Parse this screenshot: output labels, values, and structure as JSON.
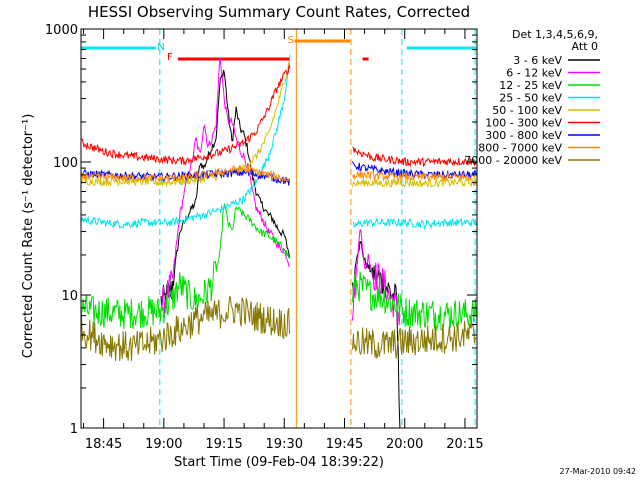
{
  "chart_data": {
    "type": "line",
    "title": "HESSI Observing Summary Count Rates, Corrected",
    "xlabel": "Start Time (09-Feb-04 18:39:22)",
    "ylabel": "Corrected Count Rate (s⁻¹ detector⁻¹)",
    "yscale": "log",
    "ylim": [
      1,
      1000
    ],
    "xlim": [
      "18:39:22",
      "20:18:00"
    ],
    "x_units": "minutes since 18:00 (axis tick values)",
    "x_range_minutes": [
      39.37,
      138.0
    ],
    "yticks": [
      {
        "value": 1,
        "label": "1"
      },
      {
        "value": 10,
        "label": "10"
      },
      {
        "value": 100,
        "label": "100"
      },
      {
        "value": 1000,
        "label": "1000"
      }
    ],
    "xticks": [
      {
        "t": 45,
        "label": "18:45"
      },
      {
        "t": 60,
        "label": "19:00"
      },
      {
        "t": 75,
        "label": "19:15"
      },
      {
        "t": 90,
        "label": "19:30"
      },
      {
        "t": 105,
        "label": "19:45"
      },
      {
        "t": 120,
        "label": "20:00"
      },
      {
        "t": 135,
        "label": "20:15"
      }
    ],
    "legend": {
      "position": "right",
      "header": [
        "Det 1,3,4,5,6,9,",
        "Att 0"
      ],
      "entries": [
        {
          "label": "3 - 6 keV",
          "color": "#000000"
        },
        {
          "label": "6 - 12 keV",
          "color": "#ff00ff"
        },
        {
          "label": "12 - 25 keV",
          "color": "#00dd00"
        },
        {
          "label": "25 - 50 keV",
          "color": "#00e5ee"
        },
        {
          "label": "50 - 100 keV",
          "color": "#d4c000"
        },
        {
          "label": "100 - 300 keV",
          "color": "#ff0000"
        },
        {
          "label": "300 - 800 keV",
          "color": "#0000ff"
        },
        {
          "label": "800 - 7000 keV",
          "color": "#ff8800"
        },
        {
          "label": "7000 - 20000 keV",
          "color": "#887700"
        }
      ]
    },
    "annotations": [
      {
        "text": "N",
        "t": 59.3,
        "color": "#00cccc"
      },
      {
        "text": "F",
        "t": 61.5,
        "color": "#ff0000"
      },
      {
        "text": "S",
        "t": 91.6,
        "color": "#ff8800"
      }
    ],
    "intervals": {
      "night_bars": [
        {
          "start": 39.5,
          "end": 58.0
        },
        {
          "start": 120.5,
          "end": 137.8
        }
      ],
      "night_boundaries": [
        59.0,
        119.3,
        137.5
      ],
      "flare_bar": {
        "start": 63.5,
        "end": 91.4
      },
      "flare_bar_short": {
        "start": 109.5,
        "end": 111.0
      },
      "saa_bar": {
        "start": 92.5,
        "end": 106.4
      },
      "saa_boundaries": [
        93.0,
        106.6
      ]
    },
    "series": [
      {
        "name": "3 - 6 keV",
        "color": "#000000",
        "segments": [
          {
            "x": [
              59.3,
              60,
              62,
              64,
              66,
              67,
              68,
              69,
              70,
              71,
              72,
              73,
              74,
              75,
              76,
              77,
              78,
              79,
              80,
              81,
              82,
              83,
              84,
              85,
              86,
              87,
              88,
              89,
              90,
              91.3
            ],
            "y": [
              9,
              9,
              11,
              30,
              40,
              45,
              50,
              100,
              90,
              110,
              130,
              150,
              400,
              500,
              240,
              140,
              250,
              180,
              160,
              120,
              80,
              60,
              50,
              45,
              40,
              38,
              33,
              30,
              28,
              20
            ]
          },
          {
            "x": [
              107,
              108,
              109,
              110,
              111,
              112,
              113,
              114,
              115,
              116,
              117,
              118,
              118.8
            ],
            "y": [
              10,
              20,
              25,
              18,
              16,
              15,
              14,
              13,
              12,
              11,
              10,
              9,
              1
            ]
          }
        ]
      },
      {
        "name": "6 - 12 keV",
        "color": "#ff00ff",
        "segments": [
          {
            "x": [
              59.3,
              60,
              62,
              64,
              66,
              67,
              68,
              69,
              70,
              71,
              72,
              73,
              74,
              75,
              76,
              77,
              78,
              79,
              80,
              81,
              82,
              83,
              84,
              85,
              86,
              87,
              88,
              89,
              90,
              91.3
            ],
            "y": [
              8,
              9,
              12,
              40,
              80,
              100,
              150,
              110,
              200,
              130,
              150,
              190,
              650,
              300,
              200,
              200,
              150,
              120,
              110,
              90,
              60,
              45,
              40,
              35,
              30,
              28,
              25,
              22,
              22,
              17
            ]
          },
          {
            "x": [
              107,
              108,
              109,
              110,
              111,
              112,
              113,
              114,
              115,
              116,
              117,
              118,
              118.8
            ],
            "y": [
              8,
              15,
              35,
              15,
              20,
              14,
              14,
              13,
              12,
              10,
              9,
              8,
              7
            ]
          }
        ]
      },
      {
        "name": "12 - 25 keV",
        "color": "#00dd00",
        "segments": [
          {
            "x": [
              39.5,
              42,
              45,
              50,
              55,
              59,
              62,
              64,
              66,
              68,
              70,
              72,
              74,
              75,
              76,
              77,
              78,
              80,
              82,
              84,
              86,
              88,
              90,
              91.3
            ],
            "y": [
              8,
              7.5,
              7.5,
              7.2,
              7.5,
              7.5,
              9,
              12,
              10,
              9,
              10,
              12,
              20,
              50,
              35,
              30,
              45,
              40,
              35,
              30,
              28,
              25,
              22,
              19
            ]
          },
          {
            "x": [
              107,
              108,
              110,
              112,
              114,
              116,
              118,
              120,
              125,
              130,
              137.8
            ],
            "y": [
              10,
              12,
              11,
              10,
              10,
              9,
              8.5,
              7.5,
              7.3,
              7.2,
              7.2
            ]
          }
        ]
      },
      {
        "name": "25 - 50 keV",
        "color": "#00e5ee",
        "segments": [
          {
            "x": [
              39.5,
              45,
              50,
              55,
              59,
              62,
              65,
              70,
              75,
              80,
              83,
              86,
              88,
              90,
              91.4
            ],
            "y": [
              37,
              35,
              34,
              35,
              35,
              35,
              37,
              40,
              45,
              53,
              70,
              110,
              170,
              300,
              600
            ]
          },
          {
            "x": [
              107,
              110,
              115,
              120,
              125,
              130,
              137.8
            ],
            "y": [
              33,
              35,
              35,
              35,
              34,
              35,
              35
            ]
          }
        ]
      },
      {
        "name": "50 - 100 keV",
        "color": "#d4c000",
        "segments": [
          {
            "x": [
              39.5,
              45,
              50,
              55,
              59,
              62,
              65,
              70,
              75,
              80,
              83,
              86,
              88,
              90,
              91.4
            ],
            "y": [
              72,
              71,
              72,
              71,
              70,
              71,
              72,
              75,
              80,
              90,
              110,
              160,
              250,
              400,
              600
            ]
          },
          {
            "x": [
              107,
              110,
              115,
              120,
              125,
              130,
              137.8
            ],
            "y": [
              68,
              70,
              69,
              70,
              69,
              70,
              70
            ]
          }
        ]
      },
      {
        "name": "100 - 300 keV",
        "color": "#ff0000",
        "segments": [
          {
            "x": [
              39.5,
              42,
              45,
              48,
              52,
              55,
              59,
              62,
              65,
              70,
              75,
              80,
              83,
              86,
              88,
              90,
              91.4
            ],
            "y": [
              140,
              130,
              120,
              115,
              110,
              108,
              105,
              103,
              102,
              110,
              120,
              140,
              170,
              250,
              350,
              450,
              520
            ]
          },
          {
            "x": [
              107,
              108,
              110,
              112,
              115,
              118,
              120,
              125,
              130,
              137.8
            ],
            "y": [
              130,
              120,
              115,
              108,
              105,
              103,
              100,
              100,
              101,
              101
            ]
          }
        ]
      },
      {
        "name": "300 - 800 keV",
        "color": "#0000ff",
        "segments": [
          {
            "x": [
              39.5,
              45,
              50,
              55,
              59,
              62,
              65,
              70,
              75,
              78,
              80,
              82,
              84,
              86,
              88,
              90,
              91.3
            ],
            "y": [
              82,
              80,
              79,
              78,
              77,
              78,
              79,
              80,
              82,
              83,
              83,
              82,
              80,
              78,
              75,
              73,
              70
            ]
          },
          {
            "x": [
              107,
              110,
              115,
              120,
              125,
              130,
              137.8
            ],
            "y": [
              95,
              90,
              85,
              82,
              80,
              80,
              80
            ]
          }
        ]
      },
      {
        "name": "800 - 7000 keV",
        "color": "#ff8800",
        "segments": [
          {
            "x": [
              39.5,
              45,
              50,
              55,
              59,
              62,
              65,
              70,
              75,
              78,
              80,
              82,
              84,
              86,
              88,
              90,
              91.3
            ],
            "y": [
              78,
              77,
              76,
              76,
              75,
              76,
              77,
              80,
              85,
              88,
              88,
              86,
              83,
              80,
              78,
              75,
              72
            ]
          },
          {
            "x": [
              107,
              110,
              115,
              120,
              125,
              130,
              137.8
            ],
            "y": [
              80,
              80,
              78,
              77,
              77,
              77,
              77
            ]
          }
        ]
      },
      {
        "name": "7000 - 20000 keV",
        "color": "#887700",
        "segments": [
          {
            "x": [
              39.5,
              42,
              45,
              48,
              52,
              55,
              58,
              60,
              62,
              64,
              66,
              68,
              70,
              72,
              75,
              78,
              80,
              82,
              84,
              86,
              88,
              90,
              91.3
            ],
            "y": [
              5.5,
              5,
              4.5,
              4.2,
              4.0,
              4.2,
              4.5,
              4.8,
              5.2,
              5.5,
              6,
              6.5,
              6.8,
              7,
              7.5,
              7.8,
              7.5,
              7,
              6.8,
              6.5,
              6.3,
              6.2,
              6
            ]
          },
          {
            "x": [
              107,
              110,
              115,
              120,
              125,
              130,
              137.8
            ],
            "y": [
              4.5,
              4.3,
              4.2,
              4.4,
              4.6,
              4.8,
              5
            ]
          }
        ]
      }
    ]
  },
  "footer": {
    "date_stamp": "27-Mar-2010 09:42"
  }
}
